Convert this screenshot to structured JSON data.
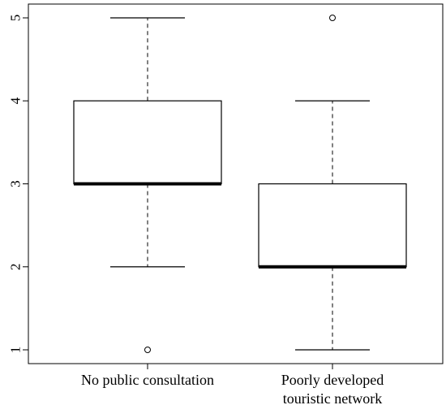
{
  "chart_data": {
    "type": "boxplot",
    "title": "",
    "xlabel": "",
    "ylabel": "",
    "ylim": [
      1,
      5
    ],
    "yticks": [
      "1",
      "2",
      "3",
      "4",
      "5"
    ],
    "grid": false,
    "legend": "none",
    "categories": [
      [
        "No public consultation"
      ],
      [
        "Poorly developed",
        "touristic network"
      ]
    ],
    "boxes": [
      {
        "whisker_low": 2,
        "q1": 3,
        "median": 3,
        "q3": 4,
        "whisker_high": 5,
        "outliers": [
          1
        ]
      },
      {
        "whisker_low": 1,
        "q1": 2,
        "median": 2,
        "q3": 3,
        "whisker_high": 4,
        "outliers": [
          5
        ]
      }
    ],
    "colors": {
      "box_fill": "#ffffff",
      "stroke": "#000000"
    }
  }
}
